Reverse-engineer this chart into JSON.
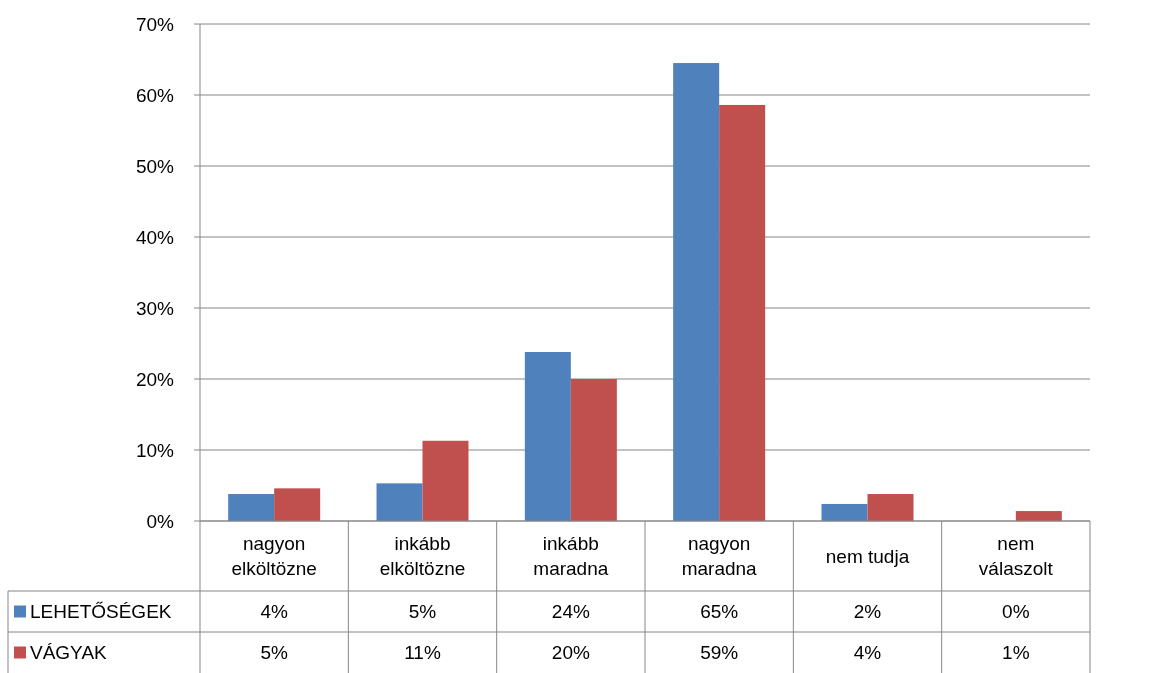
{
  "chart_data": {
    "type": "bar",
    "categories": [
      "nagyon elköltözne",
      "inkább elköltözne",
      "inkább maradna",
      "nagyon maradna",
      "nem tudja",
      "nem válaszolt"
    ],
    "series": [
      {
        "name": "LEHETŐSÉGEK",
        "color": "#4f81bd",
        "values": [
          3.8,
          5.3,
          23.8,
          64.5,
          2.4,
          0
        ],
        "value_labels": [
          "4%",
          "5%",
          "24%",
          "65%",
          "2%",
          "0%"
        ]
      },
      {
        "name": "VÁGYAK",
        "color": "#c0504d",
        "values": [
          4.6,
          11.3,
          20.0,
          58.6,
          3.8,
          1.4
        ],
        "value_labels": [
          "5%",
          "11%",
          "20%",
          "59%",
          "4%",
          "1%"
        ]
      }
    ],
    "ylim": [
      0,
      70
    ],
    "yticks": [
      {
        "value": 0,
        "label": "0%"
      },
      {
        "value": 10,
        "label": "10%"
      },
      {
        "value": 20,
        "label": "20%"
      },
      {
        "value": 30,
        "label": "30%"
      },
      {
        "value": 40,
        "label": "40%"
      },
      {
        "value": 50,
        "label": "50%"
      },
      {
        "value": 60,
        "label": "60%"
      },
      {
        "value": 70,
        "label": "70%"
      }
    ],
    "grid": "y",
    "legend": "bottom left"
  }
}
